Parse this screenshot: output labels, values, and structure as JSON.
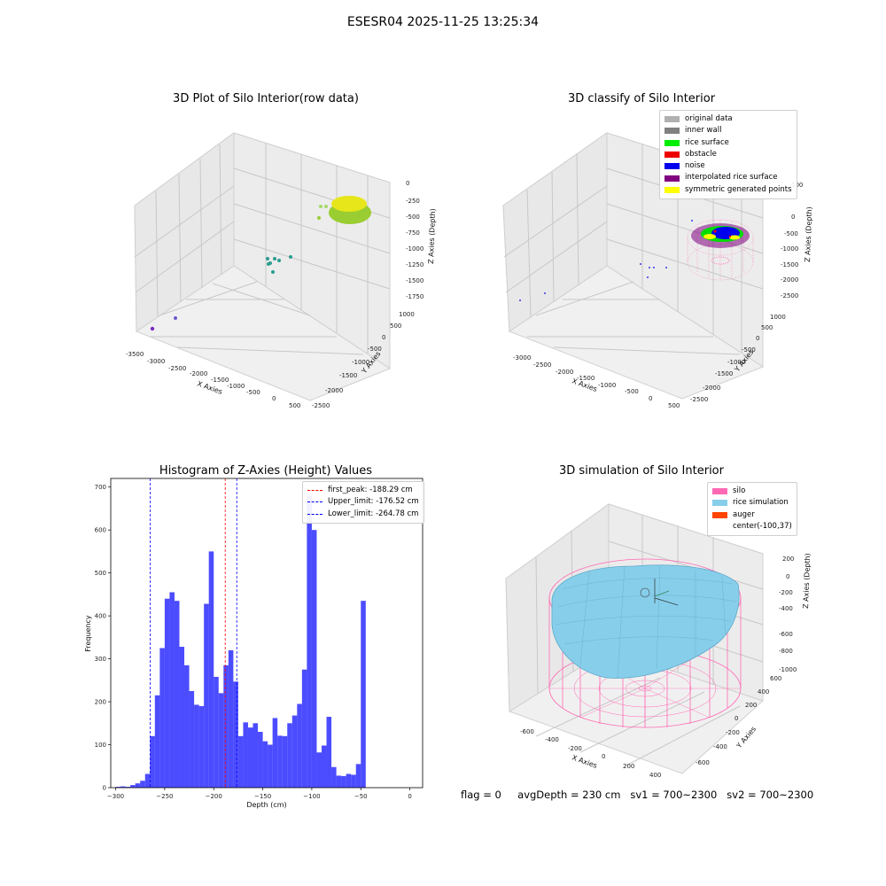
{
  "suptitle": "ESESR04 2025-11-25 13:25:34",
  "panels": {
    "raw": {
      "title": "3D Plot of Silo Interior(row data)",
      "xlabel": "X Axies",
      "ylabel": "Y Axies",
      "zlabel": "Z Axies (Depth)",
      "xticks": [
        "-3500",
        "-3000",
        "-2500",
        "-2000",
        "-1500",
        "-1000",
        "-500",
        "0",
        "500"
      ],
      "yticks": [
        "-2500",
        "-2000",
        "-1500",
        "-1000",
        "-500",
        "0",
        "500",
        "1000"
      ],
      "zticks": [
        "0",
        "-250",
        "-500",
        "-750",
        "-1000",
        "-1250",
        "-1500",
        "-1750"
      ]
    },
    "classify": {
      "title": "3D classify of Silo Interior",
      "xlabel": "X Axies",
      "ylabel": "Y Axies",
      "zlabel": "Z Axies (Depth)",
      "xticks": [
        "-3000",
        "-2500",
        "-2000",
        "-1500",
        "-1000",
        "-500",
        "0",
        "500"
      ],
      "yticks": [
        "-2500",
        "-2000",
        "-1500",
        "-1000",
        "-500",
        "0",
        "500",
        "1000"
      ],
      "zticks": [
        "500",
        "0",
        "-500",
        "-1000",
        "-1500",
        "-2000",
        "-2500"
      ],
      "legend": [
        {
          "label": "original data",
          "color": "#b0b0b0"
        },
        {
          "label": "inner wall",
          "color": "#808080"
        },
        {
          "label": "rice surface",
          "color": "#00ee00"
        },
        {
          "label": "obstacle",
          "color": "#ee0000"
        },
        {
          "label": "noise",
          "color": "#0000ee"
        },
        {
          "label": "interpolated rice surface",
          "color": "#800080"
        },
        {
          "label": "symmetric generated points",
          "color": "#ffff00"
        }
      ]
    },
    "simulation": {
      "title": "3D simulation of Silo Interior",
      "xlabel": "X Axies",
      "ylabel": "Y Axies",
      "zlabel": "Z Axies (Depth)",
      "xticks": [
        "-600",
        "-400",
        "-200",
        "0",
        "200",
        "400"
      ],
      "yticks": [
        "-600",
        "-400",
        "-200",
        "0",
        "200",
        "400",
        "600"
      ],
      "zticks": [
        "200",
        "0",
        "-200",
        "-400",
        "-600",
        "-800",
        "-1000"
      ],
      "legend": [
        {
          "label": "silo",
          "color": "#ff69b4"
        },
        {
          "label": "rice simulation",
          "color": "#87ceeb"
        },
        {
          "label": "auger",
          "color": "#ff4500"
        },
        {
          "label": "center(-100,37)",
          "color": ""
        }
      ]
    }
  },
  "status": {
    "flag": "flag = 0",
    "avg_depth": "avgDepth = 230 cm",
    "sv1": "sv1 = 700~2300",
    "sv2": "sv2 = 700~2300"
  },
  "chart_data": [
    {
      "type": "scatter",
      "title": "3D Plot of Silo Interior(row data)",
      "xlabel": "X Axies",
      "ylabel": "Y Axies",
      "zlabel": "Z Axies (Depth)",
      "xlim": [
        -3500,
        500
      ],
      "ylim": [
        -2500,
        1000
      ],
      "zlim": [
        -1750,
        0
      ]
    },
    {
      "type": "scatter",
      "title": "3D classify of Silo Interior",
      "xlabel": "X Axies",
      "ylabel": "Y Axies",
      "zlabel": "Z Axies (Depth)",
      "xlim": [
        -3000,
        500
      ],
      "ylim": [
        -2500,
        1000
      ],
      "zlim": [
        -2500,
        500
      ],
      "legend_position": "top-right"
    },
    {
      "type": "bar",
      "title": "Histogram of Z-Axies (Height) Values",
      "xlabel": "Depth (cm)",
      "ylabel": "Frequency",
      "xlim": [
        -305,
        13
      ],
      "ylim": [
        0,
        720
      ],
      "xticks": [
        -300,
        -250,
        -200,
        -150,
        -100,
        -50,
        0
      ],
      "yticks": [
        0,
        100,
        200,
        300,
        400,
        500,
        600,
        700
      ],
      "bin_start": -300,
      "bin_width": 5,
      "values": [
        2,
        3,
        2,
        6,
        10,
        16,
        32,
        120,
        215,
        325,
        440,
        455,
        435,
        328,
        285,
        225,
        193,
        190,
        428,
        550,
        258,
        220,
        285,
        320,
        247,
        120,
        152,
        140,
        150,
        130,
        108,
        100,
        162,
        121,
        120,
        150,
        168,
        195,
        275,
        680,
        600,
        82,
        98,
        165,
        48,
        28,
        27,
        32,
        30,
        55,
        435
      ],
      "color": "#0000ff",
      "vlines": [
        {
          "name": "first_peak: -188.29 cm",
          "x": -188.29,
          "color": "#ff0000"
        },
        {
          "name": "Upper_limit: -176.52 cm",
          "x": -176.52,
          "color": "#0000ff"
        },
        {
          "name": "Lower_limit: -264.78 cm",
          "x": -264.78,
          "color": "#0000ff"
        }
      ],
      "legend_position": "top-right"
    },
    {
      "type": "scatter",
      "title": "3D simulation of Silo Interior",
      "xlabel": "X Axies",
      "ylabel": "Y Axies",
      "zlabel": "Z Axies (Depth)",
      "xlim": [
        -600,
        400
      ],
      "ylim": [
        -600,
        600
      ],
      "zlim": [
        -1000,
        200
      ],
      "legend_position": "top-right"
    }
  ]
}
